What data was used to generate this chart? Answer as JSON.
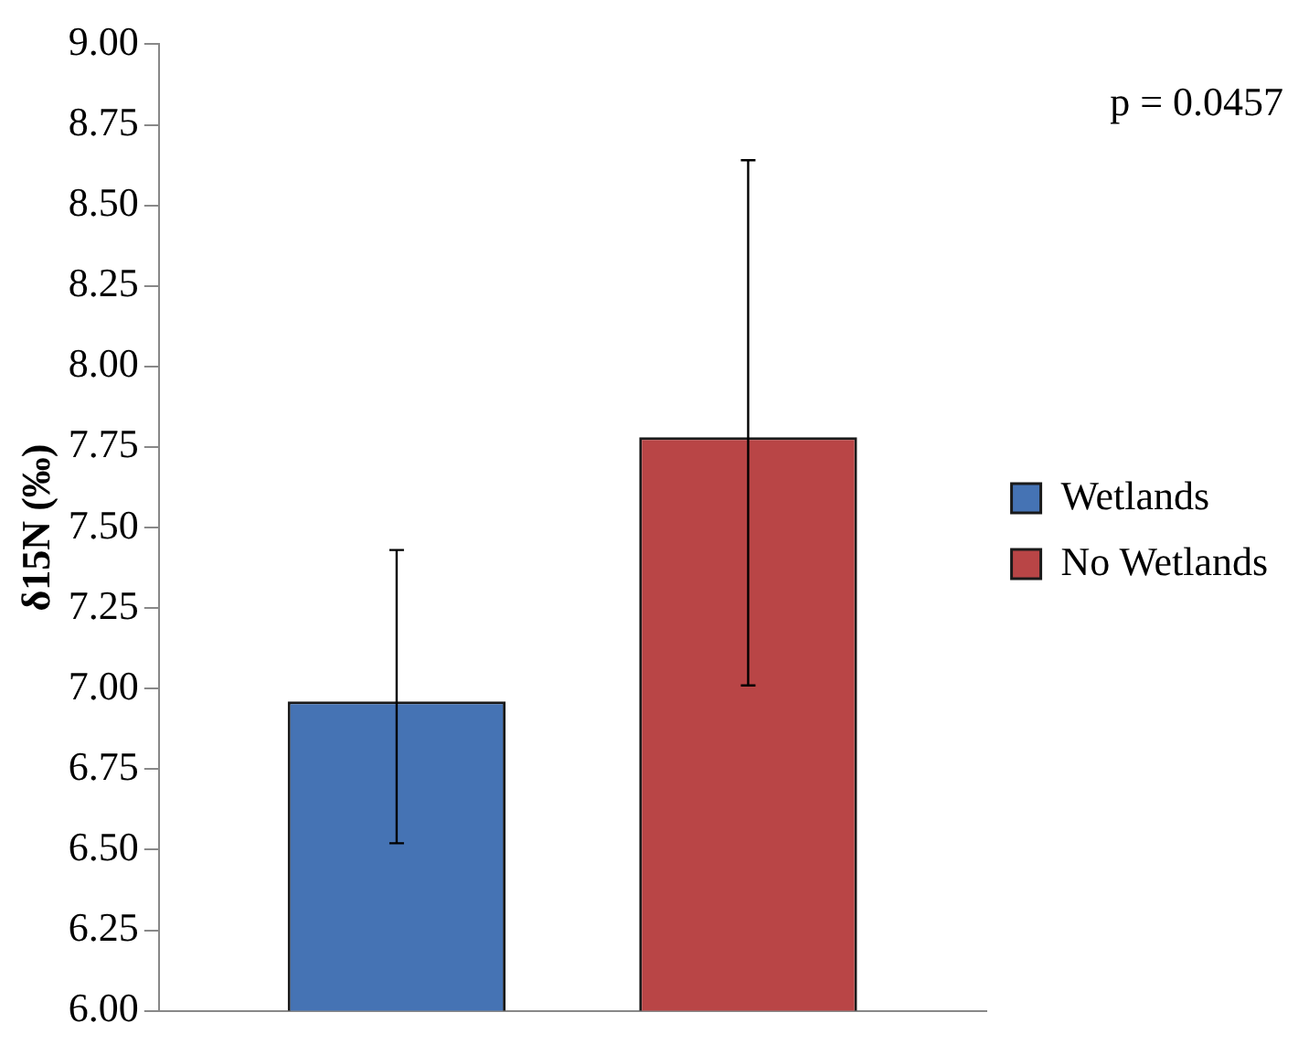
{
  "chart_data": {
    "type": "bar",
    "ylabel": "δ15N (‰)",
    "categories": [
      null
    ],
    "series": [
      {
        "name": "Wetlands",
        "color": "#4573b4",
        "values": [
          6.96
        ],
        "errors": [
          [
            6.52,
            7.43
          ]
        ]
      },
      {
        "name": "No Wetlands",
        "color": "#b94546",
        "values": [
          7.78
        ],
        "errors": [
          [
            7.01,
            8.64
          ]
        ]
      }
    ],
    "ylim": [
      6,
      9
    ],
    "yticks": [
      {
        "value": 6,
        "label": "6.00"
      },
      {
        "value": 6.25,
        "label": "6.25"
      },
      {
        "value": 6.5,
        "label": "6.50"
      },
      {
        "value": 6.75,
        "label": "6.75"
      },
      {
        "value": 7,
        "label": "7.00"
      },
      {
        "value": 7.25,
        "label": "7.25"
      },
      {
        "value": 7.5,
        "label": "7.50"
      },
      {
        "value": 7.75,
        "label": "7.75"
      },
      {
        "value": 8,
        "label": "8.00"
      },
      {
        "value": 8.25,
        "label": "8.25"
      },
      {
        "value": 8.5,
        "label": "8.50"
      },
      {
        "value": 8.75,
        "label": "8.75"
      },
      {
        "value": 9,
        "label": "9.00"
      }
    ],
    "grid": false,
    "legend": "right",
    "tick_labels": "y",
    "annotations": [
      "p = 0.0457"
    ]
  }
}
